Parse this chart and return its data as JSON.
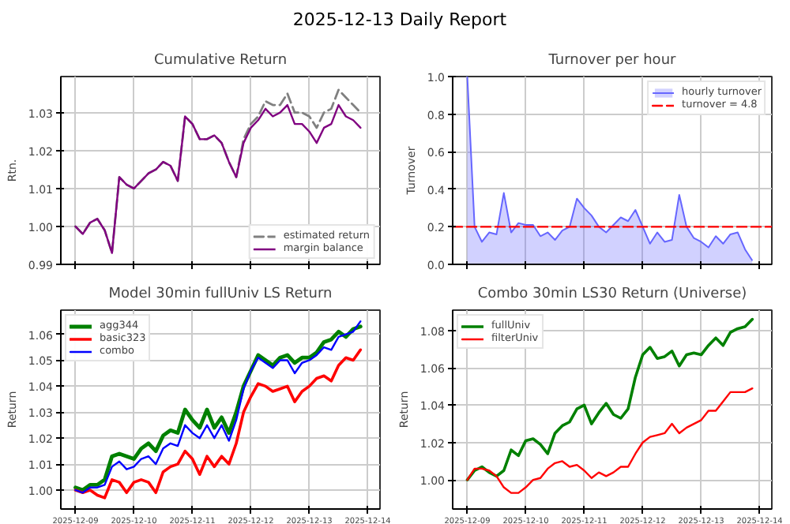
{
  "chart_data": [
    {
      "type": "line",
      "title": "Cumulative Return",
      "ylabel": "Rtn.",
      "annotations": [
        "2025-12-13 Daily Report"
      ],
      "x": [
        "2025-12-09T00:00",
        "2025-12-09T03:00",
        "2025-12-09T06:00",
        "2025-12-09T09:00",
        "2025-12-09T12:00",
        "2025-12-09T15:00",
        "2025-12-09T18:00",
        "2025-12-09T21:00",
        "2025-12-10T00:00",
        "2025-12-10T03:00",
        "2025-12-10T06:00",
        "2025-12-10T09:00",
        "2025-12-10T12:00",
        "2025-12-10T15:00",
        "2025-12-10T18:00",
        "2025-12-10T21:00",
        "2025-12-11T00:00",
        "2025-12-11T03:00",
        "2025-12-11T06:00",
        "2025-12-11T09:00",
        "2025-12-11T12:00",
        "2025-12-11T15:00",
        "2025-12-11T18:00",
        "2025-12-11T21:00",
        "2025-12-12T00:00",
        "2025-12-12T03:00",
        "2025-12-12T06:00",
        "2025-12-12T09:00",
        "2025-12-12T12:00",
        "2025-12-12T15:00",
        "2025-12-12T18:00",
        "2025-12-12T21:00",
        "2025-12-13T00:00",
        "2025-12-13T03:00",
        "2025-12-13T06:00",
        "2025-12-13T09:00",
        "2025-12-13T12:00",
        "2025-12-13T15:00",
        "2025-12-13T18:00",
        "2025-12-13T21:00"
      ],
      "series": [
        {
          "name": "estimated return",
          "color": "#808080",
          "line_style": "dashed",
          "values": [
            1.0,
            0.998,
            1.001,
            1.002,
            0.999,
            0.993,
            1.013,
            1.011,
            1.01,
            1.012,
            1.014,
            1.015,
            1.017,
            1.016,
            1.012,
            1.029,
            1.027,
            1.023,
            1.023,
            1.024,
            1.022,
            1.017,
            1.013,
            1.023,
            1.027,
            1.029,
            1.033,
            1.032,
            1.032,
            1.035,
            1.03,
            1.03,
            1.029,
            1.026,
            1.03,
            1.031,
            1.036,
            1.034,
            1.032,
            1.03
          ]
        },
        {
          "name": "margin balance",
          "color": "#800080",
          "values": [
            1.0,
            0.998,
            1.001,
            1.002,
            0.999,
            0.993,
            1.013,
            1.011,
            1.01,
            1.012,
            1.014,
            1.015,
            1.017,
            1.016,
            1.012,
            1.029,
            1.027,
            1.023,
            1.023,
            1.024,
            1.022,
            1.017,
            1.013,
            1.022,
            1.026,
            1.028,
            1.031,
            1.029,
            1.03,
            1.032,
            1.027,
            1.027,
            1.025,
            1.022,
            1.026,
            1.027,
            1.032,
            1.029,
            1.028,
            1.026
          ]
        }
      ],
      "xlim": [
        "2025-12-08T18:00",
        "2025-12-14T05:00"
      ],
      "xticks": [
        {
          "value": "2025-12-09",
          "label": null
        },
        {
          "value": "2025-12-10",
          "label": null
        },
        {
          "value": "2025-12-11",
          "label": null
        },
        {
          "value": "2025-12-12",
          "label": null
        },
        {
          "value": "2025-12-13",
          "label": null
        },
        {
          "value": "2025-12-14",
          "label": null
        }
      ],
      "ylim": [
        0.99,
        1.0395
      ],
      "yticks": [
        {
          "value": 0.99,
          "label": "0.99"
        },
        {
          "value": 1.0,
          "label": "1.00"
        },
        {
          "value": 1.01,
          "label": "1.01"
        },
        {
          "value": 1.02,
          "label": "1.02"
        },
        {
          "value": 1.03,
          "label": "1.03"
        }
      ],
      "tick_labels": "y",
      "grid": true,
      "legend": "bottom right"
    },
    {
      "type": "area",
      "title": "Turnover per hour",
      "ylabel": "Turnover",
      "x": [
        "2025-12-09T00:00",
        "2025-12-09T03:00",
        "2025-12-09T06:00",
        "2025-12-09T09:00",
        "2025-12-09T12:00",
        "2025-12-09T15:00",
        "2025-12-09T18:00",
        "2025-12-09T21:00",
        "2025-12-10T00:00",
        "2025-12-10T03:00",
        "2025-12-10T06:00",
        "2025-12-10T09:00",
        "2025-12-10T12:00",
        "2025-12-10T15:00",
        "2025-12-10T18:00",
        "2025-12-10T21:00",
        "2025-12-11T00:00",
        "2025-12-11T03:00",
        "2025-12-11T06:00",
        "2025-12-11T09:00",
        "2025-12-11T12:00",
        "2025-12-11T15:00",
        "2025-12-11T18:00",
        "2025-12-11T21:00",
        "2025-12-12T00:00",
        "2025-12-12T03:00",
        "2025-12-12T06:00",
        "2025-12-12T09:00",
        "2025-12-12T12:00",
        "2025-12-12T15:00",
        "2025-12-12T18:00",
        "2025-12-12T21:00",
        "2025-12-13T00:00",
        "2025-12-13T03:00",
        "2025-12-13T06:00",
        "2025-12-13T09:00",
        "2025-12-13T12:00",
        "2025-12-13T15:00",
        "2025-12-13T18:00",
        "2025-12-13T21:00"
      ],
      "series": [
        {
          "name": "hourly turnover",
          "color": "#6666ff",
          "values": [
            1.0,
            0.2,
            0.12,
            0.17,
            0.16,
            0.38,
            0.17,
            0.22,
            0.21,
            0.21,
            0.15,
            0.17,
            0.13,
            0.18,
            0.2,
            0.35,
            0.3,
            0.26,
            0.2,
            0.17,
            0.21,
            0.25,
            0.23,
            0.29,
            0.2,
            0.11,
            0.17,
            0.12,
            0.13,
            0.37,
            0.2,
            0.14,
            0.12,
            0.09,
            0.15,
            0.11,
            0.16,
            0.17,
            0.08,
            0.02
          ]
        },
        {
          "name": "turnover = 4.8",
          "type": "line",
          "color": "#ff0000",
          "line_style": "dashed",
          "x": [
            "2025-12-08T18:00",
            "2025-12-14T05:00"
          ],
          "values": [
            0.2,
            0.2
          ]
        }
      ],
      "xlim": [
        "2025-12-08T18:00",
        "2025-12-14T05:00"
      ],
      "xticks": [
        {
          "value": "2025-12-09",
          "label": null
        },
        {
          "value": "2025-12-10",
          "label": null
        },
        {
          "value": "2025-12-11",
          "label": null
        },
        {
          "value": "2025-12-12",
          "label": null
        },
        {
          "value": "2025-12-13",
          "label": null
        },
        {
          "value": "2025-12-14",
          "label": null
        }
      ],
      "ylim": [
        0,
        1
      ],
      "yticks": [
        {
          "value": 0,
          "label": "0.0"
        },
        {
          "value": 0.2,
          "label": "0.2"
        },
        {
          "value": 0.4,
          "label": "0.4"
        },
        {
          "value": 0.6,
          "label": "0.6"
        },
        {
          "value": 0.8,
          "label": "0.8"
        },
        {
          "value": 1,
          "label": "1.0"
        }
      ],
      "tick_labels": "y",
      "grid": true,
      "legend": "top right"
    },
    {
      "type": "line",
      "title": "Model 30min fullUniv LS Return",
      "ylabel": "Return",
      "x": [
        "2025-12-09T00:00",
        "2025-12-09T03:00",
        "2025-12-09T06:00",
        "2025-12-09T09:00",
        "2025-12-09T12:00",
        "2025-12-09T15:00",
        "2025-12-09T18:00",
        "2025-12-09T21:00",
        "2025-12-10T00:00",
        "2025-12-10T03:00",
        "2025-12-10T06:00",
        "2025-12-10T09:00",
        "2025-12-10T12:00",
        "2025-12-10T15:00",
        "2025-12-10T18:00",
        "2025-12-10T21:00",
        "2025-12-11T00:00",
        "2025-12-11T03:00",
        "2025-12-11T06:00",
        "2025-12-11T09:00",
        "2025-12-11T12:00",
        "2025-12-11T15:00",
        "2025-12-11T18:00",
        "2025-12-11T21:00",
        "2025-12-12T00:00",
        "2025-12-12T03:00",
        "2025-12-12T06:00",
        "2025-12-12T09:00",
        "2025-12-12T12:00",
        "2025-12-12T15:00",
        "2025-12-12T18:00",
        "2025-12-12T21:00",
        "2025-12-13T00:00",
        "2025-12-13T03:00",
        "2025-12-13T06:00",
        "2025-12-13T09:00",
        "2025-12-13T12:00",
        "2025-12-13T15:00",
        "2025-12-13T18:00",
        "2025-12-13T21:00"
      ],
      "series": [
        {
          "name": "agg344",
          "color": "#008000",
          "values": [
            1.001,
            1.0,
            1.002,
            1.002,
            1.004,
            1.013,
            1.014,
            1.013,
            1.012,
            1.016,
            1.018,
            1.015,
            1.021,
            1.023,
            1.022,
            1.031,
            1.027,
            1.024,
            1.031,
            1.024,
            1.028,
            1.022,
            1.03,
            1.04,
            1.046,
            1.052,
            1.05,
            1.048,
            1.051,
            1.052,
            1.049,
            1.051,
            1.051,
            1.053,
            1.057,
            1.058,
            1.061,
            1.059,
            1.062,
            1.063
          ]
        },
        {
          "name": "basic323",
          "color": "#ff0000",
          "values": [
            1.0,
            0.999,
            1.0,
            0.998,
            0.997,
            1.004,
            1.003,
            0.999,
            1.003,
            1.004,
            1.003,
            0.999,
            1.007,
            1.009,
            1.01,
            1.015,
            1.012,
            1.006,
            1.013,
            1.009,
            1.013,
            1.01,
            1.018,
            1.03,
            1.036,
            1.041,
            1.04,
            1.038,
            1.039,
            1.04,
            1.034,
            1.038,
            1.04,
            1.043,
            1.044,
            1.042,
            1.048,
            1.051,
            1.05,
            1.054
          ]
        },
        {
          "name": "combo",
          "color": "#0000ff",
          "values": [
            1.0,
            0.999,
            1.001,
            1.001,
            1.002,
            1.009,
            1.011,
            1.008,
            1.009,
            1.012,
            1.013,
            1.01,
            1.016,
            1.018,
            1.017,
            1.025,
            1.022,
            1.02,
            1.025,
            1.02,
            1.025,
            1.019,
            1.027,
            1.039,
            1.046,
            1.051,
            1.049,
            1.047,
            1.05,
            1.05,
            1.045,
            1.049,
            1.05,
            1.052,
            1.055,
            1.054,
            1.059,
            1.06,
            1.061,
            1.065
          ]
        }
      ],
      "xlim": [
        "2025-12-08T18:00",
        "2025-12-14T05:00"
      ],
      "xticks": [
        "2025-12-09",
        "2025-12-10",
        "2025-12-11",
        "2025-12-12",
        "2025-12-13",
        "2025-12-14"
      ],
      "ylim": [
        0.9927,
        1.0693
      ],
      "yticks": [
        {
          "value": 1.0,
          "label": "1.00"
        },
        {
          "value": 1.01,
          "label": "1.01"
        },
        {
          "value": 1.02,
          "label": "1.02"
        },
        {
          "value": 1.03,
          "label": "1.03"
        },
        {
          "value": 1.04,
          "label": "1.04"
        },
        {
          "value": 1.05,
          "label": "1.05"
        },
        {
          "value": 1.06,
          "label": "1.06"
        }
      ],
      "grid": true,
      "legend": "top left"
    },
    {
      "type": "line",
      "title": "Combo 30min LS30 Return (Universe)",
      "ylabel": "Return",
      "x": [
        "2025-12-09T00:00",
        "2025-12-09T03:00",
        "2025-12-09T06:00",
        "2025-12-09T09:00",
        "2025-12-09T12:00",
        "2025-12-09T15:00",
        "2025-12-09T18:00",
        "2025-12-09T21:00",
        "2025-12-10T00:00",
        "2025-12-10T03:00",
        "2025-12-10T06:00",
        "2025-12-10T09:00",
        "2025-12-10T12:00",
        "2025-12-10T15:00",
        "2025-12-10T18:00",
        "2025-12-10T21:00",
        "2025-12-11T00:00",
        "2025-12-11T03:00",
        "2025-12-11T06:00",
        "2025-12-11T09:00",
        "2025-12-11T12:00",
        "2025-12-11T15:00",
        "2025-12-11T18:00",
        "2025-12-11T21:00",
        "2025-12-12T00:00",
        "2025-12-12T03:00",
        "2025-12-12T06:00",
        "2025-12-12T09:00",
        "2025-12-12T12:00",
        "2025-12-12T15:00",
        "2025-12-12T18:00",
        "2025-12-12T21:00",
        "2025-12-13T00:00",
        "2025-12-13T03:00",
        "2025-12-13T06:00",
        "2025-12-13T09:00",
        "2025-12-13T12:00",
        "2025-12-13T15:00",
        "2025-12-13T18:00",
        "2025-12-13T21:00"
      ],
      "series": [
        {
          "name": "fullUniv",
          "color": "#008000",
          "values": [
            1.0,
            1.005,
            1.007,
            1.004,
            1.002,
            1.005,
            1.016,
            1.013,
            1.021,
            1.022,
            1.019,
            1.014,
            1.025,
            1.029,
            1.031,
            1.038,
            1.04,
            1.03,
            1.036,
            1.041,
            1.035,
            1.033,
            1.038,
            1.055,
            1.067,
            1.071,
            1.065,
            1.066,
            1.069,
            1.061,
            1.067,
            1.068,
            1.067,
            1.072,
            1.076,
            1.072,
            1.079,
            1.081,
            1.082,
            1.086
          ]
        },
        {
          "name": "filterUniv",
          "color": "#ff0000",
          "values": [
            1.0,
            1.006,
            1.006,
            1.005,
            1.002,
            0.996,
            0.993,
            0.993,
            0.996,
            1.0,
            1.001,
            1.006,
            1.009,
            1.01,
            1.007,
            1.008,
            1.005,
            1.001,
            1.004,
            1.002,
            1.004,
            1.007,
            1.007,
            1.014,
            1.02,
            1.023,
            1.024,
            1.025,
            1.03,
            1.025,
            1.028,
            1.03,
            1.032,
            1.037,
            1.037,
            1.042,
            1.047,
            1.047,
            1.047,
            1.049
          ]
        }
      ],
      "xlim": [
        "2025-12-08T18:00",
        "2025-12-14T05:00"
      ],
      "xticks": [
        "2025-12-09",
        "2025-12-10",
        "2025-12-11",
        "2025-12-12",
        "2025-12-13",
        "2025-12-14"
      ],
      "ylim": [
        0.9844,
        1.0909
      ],
      "yticks": [
        {
          "value": 1.0,
          "label": "1.00"
        },
        {
          "value": 1.02,
          "label": "1.02"
        },
        {
          "value": 1.04,
          "label": "1.04"
        },
        {
          "value": 1.06,
          "label": "1.06"
        },
        {
          "value": 1.08,
          "label": "1.08"
        }
      ],
      "grid": true,
      "legend": "top left"
    }
  ]
}
